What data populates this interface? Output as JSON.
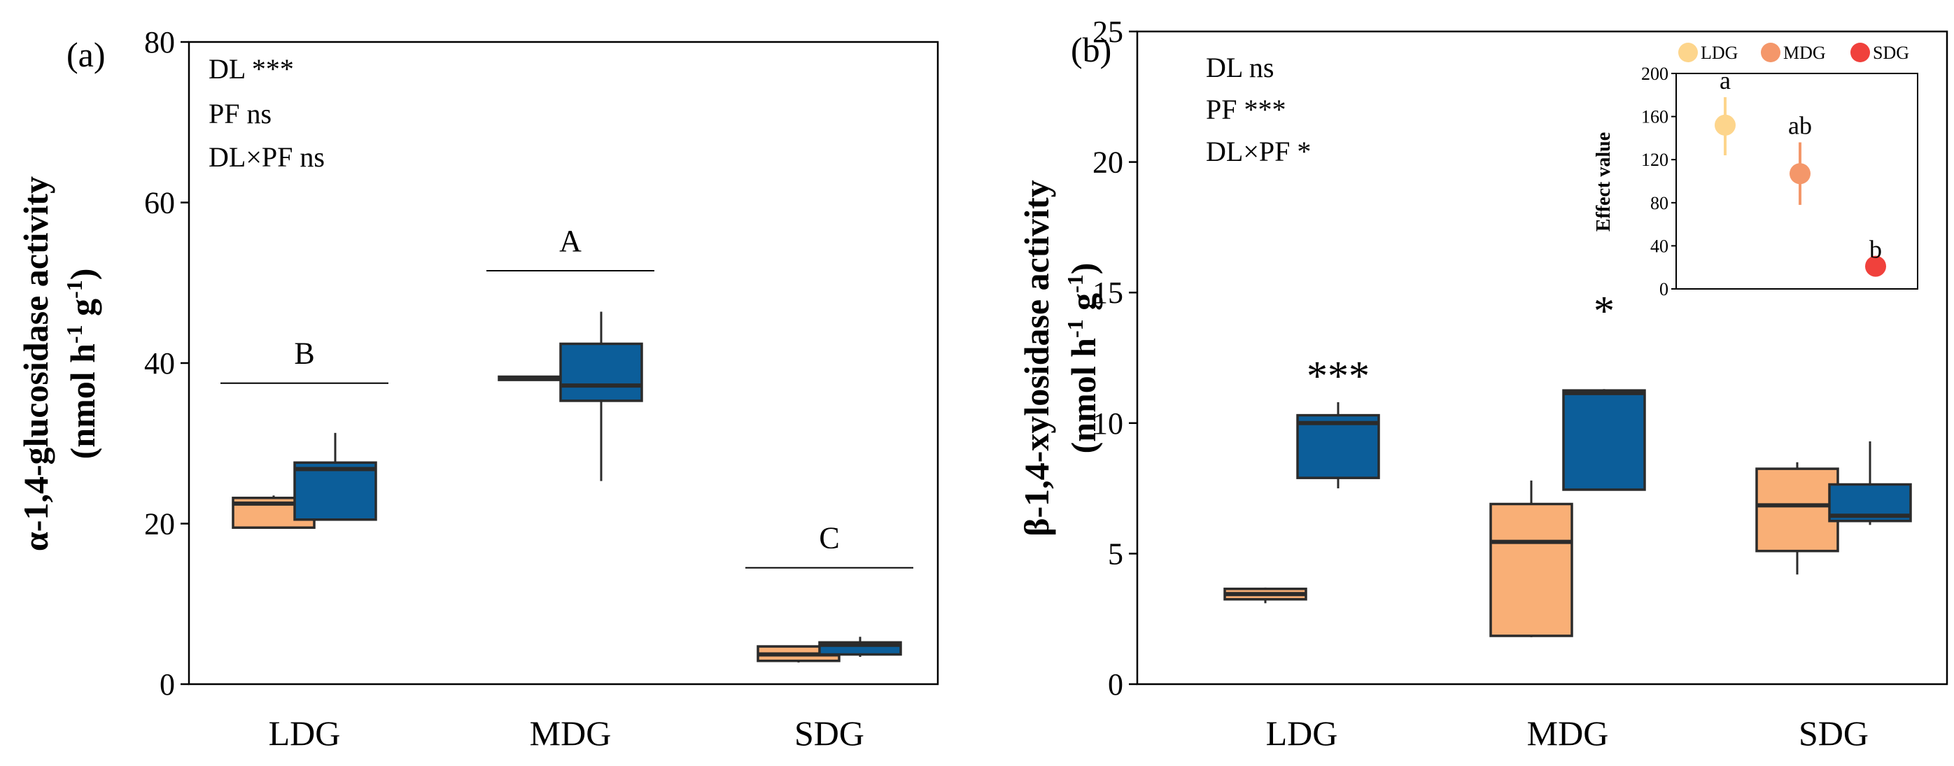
{
  "colors": {
    "ndg": "#F9AF76",
    "dg": "#0C5E9A",
    "ldg": "#FDD58C",
    "mdg": "#F4976A",
    "sdg": "#F0413C",
    "frame": "#2b2b2b"
  },
  "chart_data": [
    {
      "type": "box",
      "panel": "(a)",
      "ylabel_line1": "α-1,4-glucosidase activity",
      "ylabel_line2": {
        "pre": "(nmol h",
        "sup1": "-1",
        "mid": " g",
        "sup2": "-1",
        "post": ")"
      },
      "ylim": [
        0,
        80
      ],
      "yticks": [
        0,
        20,
        40,
        60,
        80
      ],
      "categories": [
        "LDG",
        "MDG",
        "SDG"
      ],
      "stats": [
        "DL ***",
        "PF ns",
        "DL×PF ns"
      ],
      "boxes": [
        {
          "cat": 0,
          "series": 0,
          "min": 19.5,
          "q1": 19.5,
          "median": 22.5,
          "q3": 23.2,
          "max": 23.5
        },
        {
          "cat": 0,
          "series": 1,
          "min": 20.5,
          "q1": 20.5,
          "median": 26.8,
          "q3": 27.6,
          "max": 31.3
        },
        {
          "cat": 1,
          "series": 0,
          "min": 37.9,
          "q1": 37.9,
          "median": 38.1,
          "q3": 38.3,
          "max": 38.4
        },
        {
          "cat": 1,
          "series": 1,
          "min": 25.3,
          "q1": 35.3,
          "median": 37.2,
          "q3": 42.4,
          "max": 46.4
        },
        {
          "cat": 2,
          "series": 0,
          "min": 2.7,
          "q1": 2.9,
          "median": 3.7,
          "q3": 4.7,
          "max": 4.7
        },
        {
          "cat": 2,
          "series": 1,
          "min": 3.4,
          "q1": 3.7,
          "median": 4.9,
          "q3": 5.2,
          "max": 5.9
        }
      ],
      "group_labels": [
        {
          "cat": 0,
          "label": "B",
          "y": 37.5
        },
        {
          "cat": 1,
          "label": "A",
          "y": 51.5
        },
        {
          "cat": 2,
          "label": "C",
          "y": 14.5
        }
      ],
      "sig_marks": []
    },
    {
      "type": "box",
      "panel": "(b)",
      "ylabel_line1": "β-1,4-xylosidase activity",
      "ylabel_line2": {
        "pre": "(nmol h",
        "sup1": "-1",
        "mid": " g",
        "sup2": "-1",
        "post": ")"
      },
      "ylim": [
        0,
        25
      ],
      "yticks": [
        0,
        5,
        10,
        15,
        20,
        25
      ],
      "categories": [
        "LDG",
        "MDG",
        "SDG"
      ],
      "stats": [
        "DL ns",
        "PF ***",
        "DL×PF *"
      ],
      "boxes": [
        {
          "cat": 0,
          "series": 0,
          "min": 3.1,
          "q1": 3.25,
          "median": 3.45,
          "q3": 3.65,
          "max": 3.7
        },
        {
          "cat": 0,
          "series": 1,
          "min": 7.5,
          "q1": 7.9,
          "median": 10.0,
          "q3": 10.3,
          "max": 10.8
        },
        {
          "cat": 1,
          "series": 0,
          "min": 1.8,
          "q1": 1.85,
          "median": 5.45,
          "q3": 6.9,
          "max": 7.8
        },
        {
          "cat": 1,
          "series": 1,
          "min": 7.45,
          "q1": 7.45,
          "median": 11.15,
          "q3": 11.25,
          "max": 11.3
        },
        {
          "cat": 2,
          "series": 0,
          "min": 4.2,
          "q1": 5.1,
          "median": 6.85,
          "q3": 8.25,
          "max": 8.5
        },
        {
          "cat": 2,
          "series": 1,
          "min": 6.1,
          "q1": 6.25,
          "median": 6.45,
          "q3": 7.65,
          "max": 9.3
        }
      ],
      "group_labels": [],
      "sig_marks": [
        {
          "cat": 0,
          "label": "***",
          "y": 11.8
        },
        {
          "cat": 1,
          "label": "*",
          "y": 14.3
        }
      ],
      "inset": {
        "type": "scatter",
        "ylabel": "Effect value",
        "ylim": [
          0,
          200
        ],
        "yticks": [
          0,
          40,
          80,
          120,
          160,
          200
        ],
        "legend": [
          "LDG",
          "MDG",
          "SDG"
        ],
        "points": [
          {
            "name": "LDG",
            "value": 152,
            "lo": 124,
            "hi": 178,
            "letter": "a"
          },
          {
            "name": "MDG",
            "value": 107,
            "lo": 78,
            "hi": 136,
            "letter": "ab"
          },
          {
            "name": "SDG",
            "value": 21,
            "lo": 21,
            "hi": 21,
            "letter": "b"
          }
        ]
      }
    }
  ]
}
